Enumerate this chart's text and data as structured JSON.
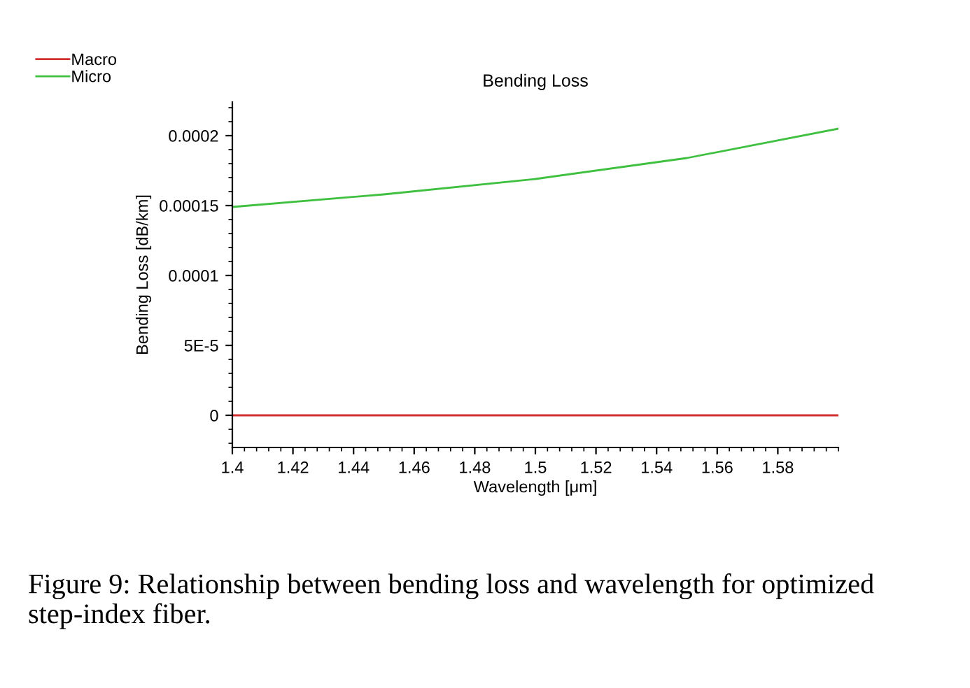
{
  "chart_data": {
    "type": "line",
    "title": "Bending Loss",
    "xlabel": "Wavelength [μm]",
    "ylabel": "Bending Loss [dB/km]",
    "x": [
      1.4,
      1.45,
      1.5,
      1.55,
      1.6
    ],
    "series": [
      {
        "name": "Macro",
        "color": "#d03030",
        "values": [
          0,
          0,
          0,
          0,
          0
        ]
      },
      {
        "name": "Micro",
        "color": "#40c040",
        "values": [
          0.000149,
          0.000158,
          0.000169,
          0.000184,
          0.000205
        ]
      }
    ],
    "xlim": [
      1.4,
      1.6
    ],
    "ylim": [
      -2.3e-05,
      0.000224
    ],
    "xticks": [
      1.4,
      1.42,
      1.44,
      1.46,
      1.48,
      1.5,
      1.52,
      1.54,
      1.56,
      1.58
    ],
    "yticks": [
      0,
      {
        "value": 5e-05,
        "label": "5E-5"
      },
      0.0001,
      0.00015,
      0.0002
    ],
    "grid": false,
    "legend": "top left",
    "marker": "none",
    "line_style": "solid",
    "annotations": [
      "Figure 9: Relationship between bending loss and wavelength for optimized step-index fiber."
    ]
  }
}
